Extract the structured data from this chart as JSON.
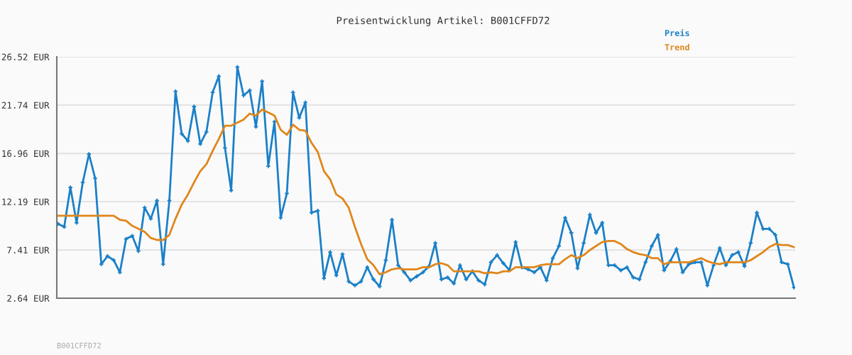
{
  "chart_data": {
    "type": "line",
    "title": "Preisentwicklung Artikel: B001CFFD72",
    "categories": [
      null,
      null,
      null,
      null,
      null,
      null,
      null,
      null,
      null,
      null,
      null,
      null,
      null,
      null,
      null,
      null,
      null,
      null,
      null,
      null,
      null,
      null,
      null,
      null,
      null,
      null,
      null,
      null,
      null,
      null,
      null,
      null,
      null,
      null,
      null,
      null,
      null,
      null,
      null,
      null,
      null,
      null,
      null,
      null,
      null,
      null,
      null,
      null,
      null,
      null,
      null,
      null,
      null,
      null,
      null,
      null,
      null,
      null,
      null,
      null,
      null,
      null,
      null,
      null,
      null,
      null,
      null,
      null,
      null,
      null,
      null,
      null,
      null,
      null,
      null,
      null,
      null,
      null,
      null,
      null,
      null,
      null,
      null,
      null,
      null,
      null,
      null,
      null,
      null,
      null,
      null,
      null,
      null,
      null,
      null,
      null,
      null,
      null,
      null,
      null,
      null,
      null,
      null,
      null,
      null,
      null,
      null,
      null,
      null,
      null,
      null,
      null,
      null,
      null,
      null,
      null,
      null,
      null,
      null,
      null
    ],
    "series": [
      {
        "name": "Preis",
        "color": "#1a80c8",
        "marker": "cross",
        "values": [
          10.0,
          9.7,
          13.6,
          10.1,
          14.1,
          16.9,
          14.5,
          6.0,
          6.8,
          6.4,
          5.2,
          8.5,
          8.8,
          7.3,
          11.6,
          10.5,
          12.3,
          6.0,
          12.3,
          23.1,
          18.9,
          18.2,
          21.6,
          17.9,
          19.1,
          23.0,
          24.6,
          17.5,
          13.3,
          25.5,
          22.7,
          23.2,
          19.6,
          24.1,
          15.7,
          20.1,
          10.6,
          13.0,
          23.0,
          20.5,
          22.0,
          11.1,
          11.3,
          4.6,
          7.2,
          4.9,
          7.0,
          4.3,
          3.9,
          4.3,
          5.7,
          4.5,
          3.8,
          6.4,
          10.4,
          5.9,
          5.2,
          4.4,
          4.8,
          5.2,
          5.8,
          8.1,
          4.5,
          4.7,
          4.1,
          5.9,
          4.5,
          5.3,
          4.4,
          4.0,
          6.2,
          6.9,
          6.1,
          5.4,
          8.2,
          5.7,
          5.5,
          5.2,
          5.7,
          4.4,
          6.6,
          7.8,
          10.6,
          9.1,
          5.6,
          8.1,
          10.9,
          9.1,
          10.1,
          5.9,
          5.9,
          5.4,
          5.7,
          4.7,
          4.5,
          6.2,
          7.8,
          8.9,
          5.4,
          6.3,
          7.5,
          5.2,
          6.0,
          6.2,
          6.2,
          3.9,
          5.9,
          7.6,
          5.9,
          6.9,
          7.2,
          5.8,
          8.1,
          11.1,
          9.5,
          9.5,
          8.9,
          6.2,
          6.0,
          3.7
        ]
      },
      {
        "name": "Trend",
        "color": "#e0861a",
        "values": [
          10.8,
          10.8,
          10.8,
          10.8,
          10.8,
          10.8,
          10.8,
          10.8,
          10.8,
          10.8,
          10.4,
          10.3,
          9.8,
          9.5,
          9.2,
          8.6,
          8.4,
          8.4,
          8.9,
          10.5,
          11.9,
          12.9,
          14.1,
          15.2,
          15.9,
          17.2,
          18.4,
          19.7,
          19.7,
          20.0,
          20.3,
          20.9,
          20.7,
          21.3,
          21.0,
          20.7,
          19.3,
          18.8,
          19.8,
          19.3,
          19.2,
          18.0,
          17.1,
          15.2,
          14.4,
          12.9,
          12.5,
          11.6,
          9.7,
          8.0,
          6.5,
          5.9,
          5.0,
          5.2,
          5.5,
          5.6,
          5.5,
          5.5,
          5.5,
          5.7,
          5.7,
          6.0,
          6.1,
          5.9,
          5.3,
          5.3,
          5.3,
          5.3,
          5.3,
          5.1,
          5.2,
          5.1,
          5.3,
          5.3,
          5.7,
          5.7,
          5.7,
          5.7,
          5.9,
          6.0,
          6.0,
          6.0,
          6.5,
          6.9,
          6.6,
          6.9,
          7.4,
          7.8,
          8.2,
          8.3,
          8.3,
          8.0,
          7.5,
          7.2,
          7.0,
          6.9,
          6.6,
          6.6,
          6.0,
          6.2,
          6.2,
          6.2,
          6.2,
          6.4,
          6.6,
          6.3,
          6.1,
          6.0,
          6.2,
          6.2,
          6.2,
          6.2,
          6.4,
          6.8,
          7.2,
          7.7,
          8.0,
          7.9,
          7.9,
          7.7
        ]
      }
    ],
    "ylim": [
      2.64,
      26.52
    ],
    "yticks": [
      {
        "value": 2.64,
        "label": "2.64 EUR"
      },
      {
        "value": 7.41,
        "label": "7.41 EUR"
      },
      {
        "value": 12.19,
        "label": "12.19 EUR"
      },
      {
        "value": 16.96,
        "label": "16.96 EUR"
      },
      {
        "value": 21.74,
        "label": "21.74 EUR"
      },
      {
        "value": 26.52,
        "label": "26.52 EUR"
      }
    ],
    "grid": "y",
    "legend": "top right",
    "tick_labels": "y",
    "annotations": [
      "B001CFFD72"
    ]
  }
}
